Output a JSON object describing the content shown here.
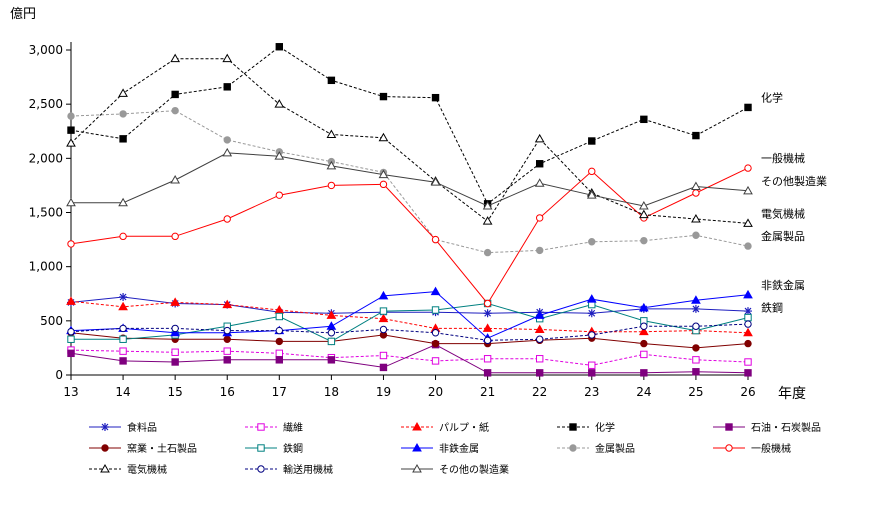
{
  "chart_data": {
    "type": "line",
    "ylabel": "億円",
    "xlabel": "年度",
    "ylim": [
      0,
      3000
    ],
    "yticks": [
      0,
      500,
      1000,
      1500,
      2000,
      2500,
      3000
    ],
    "ytick_labels": [
      "0",
      "500",
      "1,000",
      "1,500",
      "2,000",
      "2,500",
      "3,000"
    ],
    "x": [
      13,
      14,
      15,
      16,
      17,
      18,
      19,
      20,
      21,
      22,
      23,
      24,
      25,
      26
    ],
    "xtick_labels": [
      "13",
      "14",
      "15",
      "16",
      "17",
      "18",
      "19",
      "20",
      "21",
      "22",
      "23",
      "24",
      "25",
      "26"
    ],
    "series": [
      {
        "name": "食料品",
        "key": "food",
        "color": "#1f1fbf",
        "dash": "",
        "marker": "star",
        "values": [
          670,
          720,
          660,
          650,
          580,
          570,
          580,
          580,
          570,
          580,
          570,
          610,
          610,
          590
        ]
      },
      {
        "name": "繊維",
        "key": "textile",
        "color": "#e000e0",
        "dash": "3,2",
        "marker": "square-open",
        "values": [
          230,
          220,
          210,
          220,
          200,
          160,
          180,
          130,
          150,
          150,
          90,
          190,
          140,
          120
        ]
      },
      {
        "name": "パルプ・紙",
        "key": "pulp",
        "color": "#ff0000",
        "dash": "3,2",
        "marker": "triangle",
        "values": [
          680,
          630,
          670,
          650,
          600,
          550,
          520,
          430,
          430,
          420,
          400,
          400,
          410,
          390
        ]
      },
      {
        "name": "化学",
        "key": "chemical",
        "color": "#000000",
        "dash": "3,2",
        "marker": "square",
        "values": [
          2260,
          2180,
          2590,
          2660,
          3030,
          2720,
          2570,
          2560,
          1580,
          1950,
          2160,
          2360,
          2210,
          2470
        ]
      },
      {
        "name": "石油・石炭製品",
        "key": "petroleum",
        "color": "#7f007f",
        "dash": "",
        "marker": "square",
        "values": [
          200,
          130,
          120,
          140,
          140,
          140,
          70,
          280,
          20,
          20,
          20,
          20,
          30,
          20
        ]
      },
      {
        "name": "窯業・土石製品",
        "key": "ceramics",
        "color": "#800000",
        "dash": "",
        "marker": "circle",
        "values": [
          390,
          340,
          330,
          330,
          310,
          310,
          370,
          290,
          290,
          320,
          340,
          290,
          250,
          290
        ]
      },
      {
        "name": "鉄鋼",
        "key": "steel",
        "color": "#008080",
        "dash": "",
        "marker": "square-open",
        "values": [
          330,
          330,
          370,
          450,
          540,
          310,
          590,
          600,
          660,
          520,
          650,
          500,
          410,
          530
        ]
      },
      {
        "name": "非鉄金属",
        "key": "nonferrous",
        "color": "#0000ff",
        "dash": "",
        "marker": "triangle",
        "values": [
          410,
          430,
          390,
          390,
          410,
          450,
          730,
          770,
          340,
          550,
          700,
          620,
          690,
          740
        ]
      },
      {
        "name": "金属製品",
        "key": "metal",
        "color": "#999999",
        "dash": "3,2",
        "marker": "circle",
        "values": [
          2390,
          2410,
          2440,
          2170,
          2060,
          1970,
          1870,
          1250,
          1130,
          1150,
          1230,
          1240,
          1290,
          1190
        ]
      },
      {
        "name": "一般機械",
        "key": "machinery",
        "color": "#ff0000",
        "dash": "",
        "marker": "circle-open",
        "values": [
          1210,
          1280,
          1280,
          1440,
          1660,
          1750,
          1760,
          1250,
          660,
          1450,
          1880,
          1450,
          1680,
          1910
        ]
      },
      {
        "name": "電気機械",
        "key": "electrical",
        "color": "#000000",
        "dash": "3,2",
        "marker": "triangle-open",
        "values": [
          2140,
          2600,
          2920,
          2920,
          2500,
          2220,
          2190,
          1790,
          1420,
          2180,
          1680,
          1480,
          1440,
          1400
        ]
      },
      {
        "name": "輸送用機械",
        "key": "transport",
        "color": "#000080",
        "dash": "3,2",
        "marker": "circle-open",
        "values": [
          400,
          430,
          430,
          410,
          410,
          390,
          420,
          390,
          320,
          330,
          370,
          450,
          450,
          470
        ]
      },
      {
        "name": "その他の製造業",
        "key": "other",
        "color": "#404040",
        "dash": "",
        "marker": "triangle-open",
        "values": [
          1590,
          1590,
          1800,
          2050,
          2020,
          1930,
          1850,
          1780,
          1560,
          1770,
          1660,
          1560,
          1740,
          1700
        ]
      }
    ],
    "annotations": [
      {
        "key": "chemical",
        "text": "化学"
      },
      {
        "key": "machinery",
        "text": "一般機械"
      },
      {
        "key": "other",
        "text": "その他製造業"
      },
      {
        "key": "electrical",
        "text": "電気機械"
      },
      {
        "key": "metal",
        "text": "金属製品"
      },
      {
        "key": "nonferrous",
        "text": "非鉄金属"
      },
      {
        "key": "steel",
        "text": "鉄鋼"
      }
    ]
  }
}
